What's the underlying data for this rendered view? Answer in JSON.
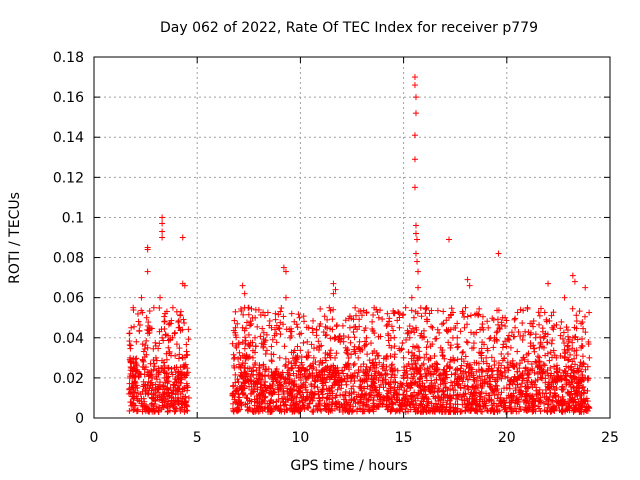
{
  "chart_data": {
    "type": "scatter",
    "title": "Day 062 of 2022, Rate Of TEC Index for receiver p779",
    "xlabel": "GPS time / hours",
    "ylabel": "ROTI / TECUs",
    "xlim": [
      0,
      25
    ],
    "ylim": [
      0,
      0.18
    ],
    "xticks": [
      0,
      5,
      10,
      15,
      20,
      25
    ],
    "xtick_labels": [
      "0",
      "5",
      "10",
      "15",
      "20",
      "25"
    ],
    "yticks": [
      0,
      0.02,
      0.04,
      0.06,
      0.08,
      0.1,
      0.12,
      0.14,
      0.16,
      0.18
    ],
    "ytick_labels": [
      "0",
      "0.02",
      "0.04",
      "0.06",
      "0.08",
      "0.1",
      "0.12",
      "0.14",
      "0.16",
      "0.18"
    ],
    "grid": true,
    "marker": "+",
    "color": "#ff0000",
    "series": [
      {
        "name": "ROTI",
        "x": [
          1.7,
          1.75,
          1.8,
          1.85,
          1.9,
          1.95,
          2.0,
          2.05,
          2.1,
          2.2,
          2.3,
          2.4,
          2.5,
          2.55,
          2.6,
          2.65,
          2.7,
          2.8,
          2.9,
          3.0,
          3.1,
          3.2,
          3.25,
          3.3,
          3.35,
          3.4,
          3.5,
          3.6,
          3.7,
          3.8,
          3.9,
          4.0,
          4.1,
          4.2,
          4.25,
          4.3,
          4.4,
          4.5,
          4.6,
          6.7,
          6.8,
          6.9,
          7.0,
          7.1,
          7.2,
          7.3,
          7.4,
          7.5,
          7.6,
          7.7,
          7.8,
          7.9,
          8.0,
          8.2,
          8.4,
          8.6,
          8.8,
          9.0,
          9.2,
          9.3,
          9.4,
          9.5,
          9.6,
          9.8,
          10.0,
          10.2,
          10.4,
          10.6,
          10.8,
          11.0,
          11.2,
          11.4,
          11.5,
          11.6,
          11.7,
          11.8,
          12.0,
          12.2,
          12.4,
          12.6,
          12.8,
          13.0,
          13.2,
          13.4,
          13.6,
          13.8,
          14.0,
          14.2,
          14.4,
          14.6,
          14.8,
          15.0,
          15.1,
          15.2,
          15.3,
          15.4,
          15.45,
          15.5,
          15.55,
          15.6,
          15.65,
          15.7,
          15.8,
          15.9,
          16.0,
          16.2,
          16.4,
          16.6,
          16.8,
          17.0,
          17.2,
          17.4,
          17.6,
          17.8,
          18.0,
          18.2,
          18.4,
          18.6,
          18.8,
          19.0,
          19.2,
          19.4,
          19.6,
          19.8,
          20.0,
          20.2,
          20.4,
          20.6,
          20.8,
          21.0,
          21.2,
          21.4,
          21.6,
          21.8,
          22.0,
          22.2,
          22.4,
          22.6,
          22.8,
          23.0,
          23.2,
          23.4,
          23.6,
          23.8,
          24.0,
          2.6,
          2.6,
          2.6,
          3.3,
          3.3,
          3.3,
          3.3,
          4.3,
          4.3,
          4.4,
          15.55,
          15.55,
          15.6,
          15.6,
          15.55,
          15.55,
          15.55,
          15.6,
          15.6,
          15.65,
          15.6,
          15.65,
          15.7,
          17.2,
          19.6,
          9.2,
          9.3,
          11.6,
          11.7,
          7.2,
          7.3,
          23.2,
          23.3,
          22.0,
          23.8,
          18.2,
          18.1
        ],
        "y": [
          0.012,
          0.03,
          0.045,
          0.02,
          0.055,
          0.01,
          0.025,
          0.038,
          0.015,
          0.022,
          0.06,
          0.028,
          0.012,
          0.05,
          0.035,
          0.018,
          0.045,
          0.02,
          0.055,
          0.03,
          0.015,
          0.06,
          0.025,
          0.04,
          0.012,
          0.048,
          0.02,
          0.035,
          0.015,
          0.04,
          0.025,
          0.018,
          0.045,
          0.012,
          0.02,
          0.03,
          0.015,
          0.022,
          0.01,
          0.012,
          0.025,
          0.035,
          0.018,
          0.03,
          0.045,
          0.015,
          0.022,
          0.055,
          0.012,
          0.03,
          0.04,
          0.018,
          0.025,
          0.035,
          0.015,
          0.045,
          0.02,
          0.03,
          0.012,
          0.06,
          0.025,
          0.04,
          0.018,
          0.03,
          0.015,
          0.022,
          0.045,
          0.012,
          0.035,
          0.02,
          0.03,
          0.055,
          0.015,
          0.062,
          0.04,
          0.025,
          0.018,
          0.035,
          0.045,
          0.02,
          0.03,
          0.012,
          0.04,
          0.025,
          0.015,
          0.05,
          0.01,
          0.022,
          0.035,
          0.018,
          0.045,
          0.03,
          0.055,
          0.02,
          0.04,
          0.06,
          0.025,
          0.05,
          0.035,
          0.045,
          0.03,
          0.065,
          0.02,
          0.04,
          0.03,
          0.015,
          0.045,
          0.025,
          0.035,
          0.018,
          0.05,
          0.03,
          0.04,
          0.02,
          0.055,
          0.025,
          0.035,
          0.015,
          0.045,
          0.03,
          0.02,
          0.04,
          0.025,
          0.05,
          0.015,
          0.035,
          0.045,
          0.02,
          0.03,
          0.055,
          0.018,
          0.04,
          0.025,
          0.035,
          0.015,
          0.045,
          0.03,
          0.02,
          0.06,
          0.025,
          0.04,
          0.015,
          0.035,
          0.02,
          0.03,
          0.085,
          0.073,
          0.084,
          0.1,
          0.097,
          0.093,
          0.09,
          0.09,
          0.067,
          0.066,
          0.17,
          0.166,
          0.16,
          0.152,
          0.141,
          0.129,
          0.115,
          0.096,
          0.092,
          0.089,
          0.082,
          0.078,
          0.073,
          0.089,
          0.082,
          0.075,
          0.073,
          0.067,
          0.064,
          0.066,
          0.062,
          0.071,
          0.068,
          0.067,
          0.065,
          0.066,
          0.069
        ]
      }
    ],
    "bands": [
      {
        "x": [
          1.7,
          4.6
        ],
        "ymin": 0.003,
        "ymax": 0.025,
        "density": 0.9
      },
      {
        "x": [
          6.7,
          24.0
        ],
        "ymin": 0.003,
        "ymax": 0.025,
        "density": 0.9
      },
      {
        "x": [
          1.7,
          4.6
        ],
        "ymin": 0.025,
        "ymax": 0.055,
        "density": 0.35
      },
      {
        "x": [
          6.7,
          24.0
        ],
        "ymin": 0.025,
        "ymax": 0.055,
        "density": 0.35
      }
    ]
  }
}
